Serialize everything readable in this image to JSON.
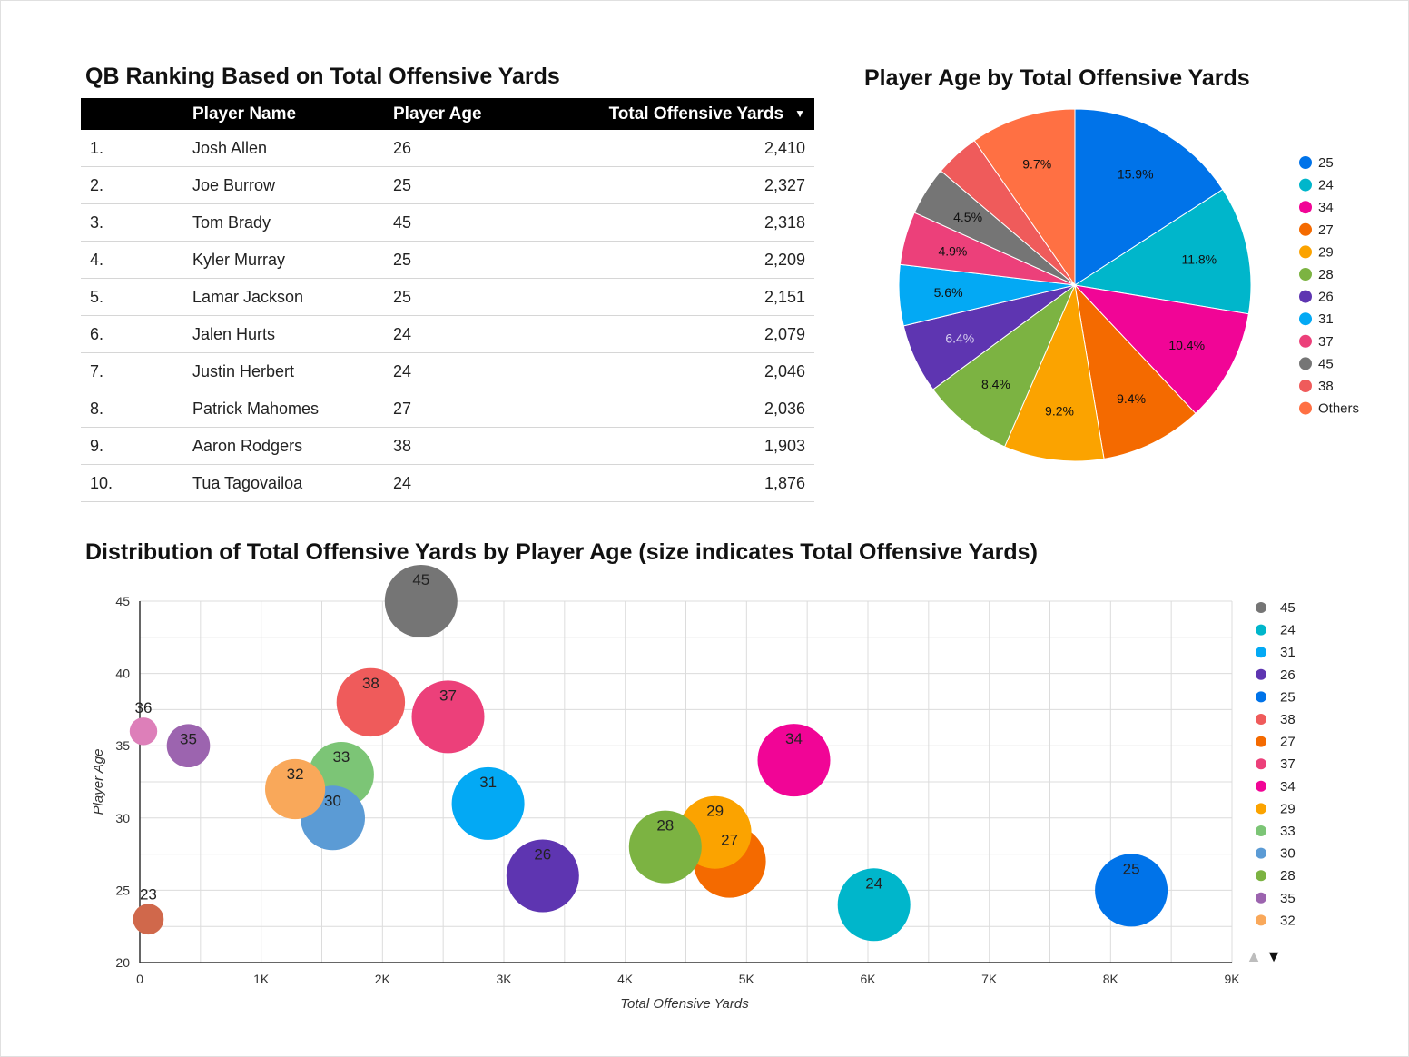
{
  "table": {
    "title": "QB Ranking Based on Total Offensive Yards",
    "columns": [
      "Player Name",
      "Player Age",
      "Total Offensive Yards"
    ],
    "sort_indicator": "▼",
    "rows": [
      {
        "rank": "1.",
        "name": "Josh Allen",
        "age": "26",
        "yards": "2,410"
      },
      {
        "rank": "2.",
        "name": "Joe Burrow",
        "age": "25",
        "yards": "2,327"
      },
      {
        "rank": "3.",
        "name": "Tom Brady",
        "age": "45",
        "yards": "2,318"
      },
      {
        "rank": "4.",
        "name": "Kyler Murray",
        "age": "25",
        "yards": "2,209"
      },
      {
        "rank": "5.",
        "name": "Lamar Jackson",
        "age": "25",
        "yards": "2,151"
      },
      {
        "rank": "6.",
        "name": "Jalen Hurts",
        "age": "24",
        "yards": "2,079"
      },
      {
        "rank": "7.",
        "name": "Justin Herbert",
        "age": "24",
        "yards": "2,046"
      },
      {
        "rank": "8.",
        "name": "Patrick Mahomes",
        "age": "27",
        "yards": "2,036"
      },
      {
        "rank": "9.",
        "name": "Aaron Rodgers",
        "age": "38",
        "yards": "1,903"
      },
      {
        "rank": "10.",
        "name": "Tua Tagovailoa",
        "age": "24",
        "yards": "1,876"
      }
    ]
  },
  "chart_data": [
    {
      "type": "pie",
      "title": "Player Age by Total Offensive Yards",
      "legend_position": "right",
      "slices": [
        {
          "label": "25",
          "value": 15.9,
          "display": "15.9%",
          "color": "#0073E9"
        },
        {
          "label": "24",
          "value": 11.8,
          "display": "11.8%",
          "color": "#00B6CB"
        },
        {
          "label": "34",
          "value": 10.4,
          "display": "10.4%",
          "color": "#F10596"
        },
        {
          "label": "27",
          "value": 9.4,
          "display": "9.4%",
          "color": "#F46A00"
        },
        {
          "label": "29",
          "value": 9.2,
          "display": "9.2%",
          "color": "#FBA300"
        },
        {
          "label": "28",
          "value": 8.4,
          "display": "8.4%",
          "color": "#7CB342"
        },
        {
          "label": "26",
          "value": 6.4,
          "display": "6.4%",
          "color": "#5E35B1"
        },
        {
          "label": "31",
          "value": 5.6,
          "display": "5.6%",
          "color": "#03A9F4"
        },
        {
          "label": "37",
          "value": 4.9,
          "display": "4.9%",
          "color": "#EC407A"
        },
        {
          "label": "45",
          "value": 4.5,
          "display": "4.5%",
          "color": "#757575"
        },
        {
          "label": "38",
          "value": 4.1,
          "display": "",
          "color": "#EF5B5B"
        },
        {
          "label": "Others",
          "value": 9.7,
          "display": "9.7%",
          "color": "#FF7043"
        }
      ]
    },
    {
      "type": "scatter",
      "subtype": "bubble",
      "title": "Distribution of Total Offensive Yards by Player Age (size indicates Total Offensive Yards)",
      "xlabel": "Total Offensive Yards",
      "ylabel": "Player Age",
      "xlim": [
        0,
        9000
      ],
      "ylim": [
        20,
        45
      ],
      "x_ticks": [
        0,
        1000,
        2000,
        3000,
        4000,
        5000,
        6000,
        7000,
        8000,
        9000
      ],
      "x_tick_labels": [
        "0",
        "1K",
        "2K",
        "3K",
        "4K",
        "5K",
        "6K",
        "7K",
        "8K",
        "9K"
      ],
      "y_ticks": [
        20,
        25,
        30,
        35,
        40,
        45
      ],
      "y_tick_labels": [
        "20",
        "25",
        "30",
        "35",
        "40",
        "45"
      ],
      "grid": true,
      "legend_position": "right",
      "points": [
        {
          "label": "45",
          "x": 2318,
          "y": 45,
          "size": 2318,
          "color": "#757575"
        },
        {
          "label": "24",
          "x": 6050,
          "y": 24,
          "size": 6050,
          "color": "#00B6CB"
        },
        {
          "label": "31",
          "x": 2870,
          "y": 31,
          "size": 2870,
          "color": "#03A9F4"
        },
        {
          "label": "26",
          "x": 3320,
          "y": 26,
          "size": 3320,
          "color": "#5E35B1"
        },
        {
          "label": "25",
          "x": 8170,
          "y": 25,
          "size": 8170,
          "color": "#0073E9"
        },
        {
          "label": "38",
          "x": 1903,
          "y": 38,
          "size": 1903,
          "color": "#EF5B5B"
        },
        {
          "label": "27",
          "x": 4860,
          "y": 27,
          "size": 4860,
          "color": "#F46A00"
        },
        {
          "label": "37",
          "x": 2540,
          "y": 37,
          "size": 2540,
          "color": "#EC407A"
        },
        {
          "label": "34",
          "x": 5390,
          "y": 34,
          "size": 5390,
          "color": "#F10596"
        },
        {
          "label": "29",
          "x": 4740,
          "y": 29,
          "size": 4740,
          "color": "#FBA300"
        },
        {
          "label": "33",
          "x": 1660,
          "y": 33,
          "size": 1660,
          "color": "#7CC576"
        },
        {
          "label": "30",
          "x": 1590,
          "y": 30,
          "size": 1590,
          "color": "#5B9BD5"
        },
        {
          "label": "28",
          "x": 4330,
          "y": 28,
          "size": 4330,
          "color": "#7CB342"
        },
        {
          "label": "35",
          "x": 400,
          "y": 35,
          "size": 400,
          "color": "#9C64AF"
        },
        {
          "label": "32",
          "x": 1280,
          "y": 32,
          "size": 1280,
          "color": "#F9A85A"
        },
        {
          "label": "36",
          "x": 30,
          "y": 36,
          "size": 30,
          "color": "#DD7FB9"
        },
        {
          "label": "23",
          "x": 70,
          "y": 23,
          "size": 70,
          "color": "#D0684B"
        }
      ],
      "legend_labels": [
        "45",
        "24",
        "31",
        "26",
        "25",
        "38",
        "27",
        "37",
        "34",
        "29",
        "33",
        "30",
        "28",
        "35",
        "32"
      ],
      "pager_up": "▲",
      "pager_down": "▼"
    }
  ]
}
